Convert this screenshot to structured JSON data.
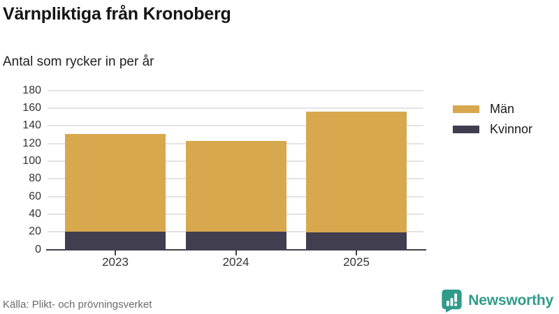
{
  "header": {
    "title": "Värnpliktiga från Kronoberg",
    "subtitle": "Antal som rycker in per år"
  },
  "chart_data": {
    "type": "bar",
    "stacked": true,
    "title": "Värnpliktiga från Kronoberg",
    "subtitle": "Antal som rycker in per år",
    "categories": [
      "2023",
      "2024",
      "2025"
    ],
    "series": [
      {
        "name": "Kvinnor",
        "values": [
          20,
          20,
          19
        ],
        "color": "#413e50"
      },
      {
        "name": "Män",
        "values": [
          111,
          103,
          137
        ],
        "color": "#d8a84f"
      }
    ],
    "totals": [
      131,
      123,
      156
    ],
    "ylim": [
      0,
      180
    ],
    "ytick_step": 20,
    "grid": true,
    "legend_position": "right",
    "legend_order": [
      "Män",
      "Kvinnor"
    ]
  },
  "footer": {
    "source": "Källa: Plikt- och prövningsverket",
    "brand": "Newsworthy"
  },
  "colors": {
    "man": "#d8a84f",
    "kvinnor": "#413e50",
    "axis": "#413e50",
    "grid": "#e3e3e3",
    "brand_teal": "#319b8b",
    "text": "#1a1a1a",
    "muted": "#6a6a6a"
  }
}
